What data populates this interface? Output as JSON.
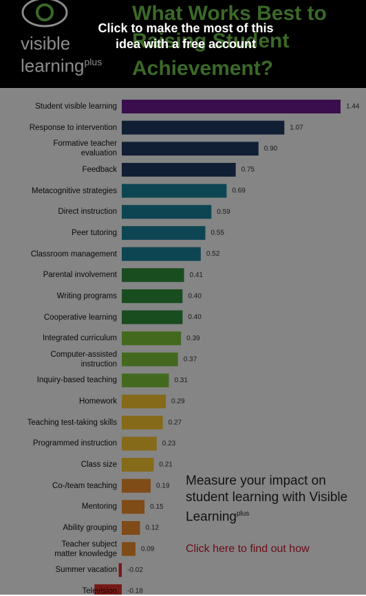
{
  "header": {
    "brand": "visible\nlearning",
    "brand_sup": "plus",
    "title": "What Works Best to Raising Student Achievement?"
  },
  "overlay": {
    "text": "Click to make the most of this idea with a free account"
  },
  "promo": {
    "text": "Measure your impact on student learning with Visible Learning",
    "sup": "plus",
    "link": "Click here to find out how"
  },
  "chart_data": {
    "type": "bar",
    "orientation": "horizontal",
    "categories": [
      "Student visible learning",
      "Response to intervention",
      "Formative teacher\nevaluation",
      "Feedback",
      "Metacognitive strategies",
      "Direct instruction",
      "Peer tutoring",
      "Classroom management",
      "Parental involvement",
      "Writing programs",
      "Cooperative learning",
      "Integrated curriculum",
      "Computer-assisted\ninstruction",
      "Inquiry-based teaching",
      "Homework",
      "Teaching test-taking skills",
      "Programmed instruction",
      "Class size",
      "Co-/team teaching",
      "Mentoring",
      "Ability grouping",
      "Teacher subject\nmatter knowledge",
      "Summer vacation",
      "Television"
    ],
    "values": [
      1.44,
      1.07,
      0.9,
      0.75,
      0.69,
      0.59,
      0.55,
      0.52,
      0.41,
      0.4,
      0.4,
      0.39,
      0.37,
      0.31,
      0.29,
      0.27,
      0.23,
      0.21,
      0.19,
      0.15,
      0.12,
      0.09,
      -0.02,
      -0.18
    ],
    "value_labels": [
      "1.44",
      "1.07",
      "0.90",
      "0.75",
      "0.69",
      "0.59",
      "0.55",
      "0.52",
      "0.41",
      "0.40",
      "0.40",
      "0.39",
      "0.37",
      "0.31",
      "0.29",
      "0.27",
      "0.23",
      "0.21",
      "0.19",
      "0.15",
      "0.12",
      "0.09",
      "-0.02",
      "-0.18"
    ],
    "colors": [
      "#6a1b8a",
      "#1f3a5f",
      "#1f3a5f",
      "#1f3a5f",
      "#1b7f96",
      "#1b7f96",
      "#1b7f96",
      "#1b7f96",
      "#2e8b3a",
      "#2e8b3a",
      "#2e8b3a",
      "#7bbf3a",
      "#7bbf3a",
      "#7bbf3a",
      "#f2c12e",
      "#f2c12e",
      "#f2c12e",
      "#f2c12e",
      "#e8892a",
      "#e8892a",
      "#e8892a",
      "#e8892a",
      "#d9302b",
      "#d9302b"
    ]
  }
}
